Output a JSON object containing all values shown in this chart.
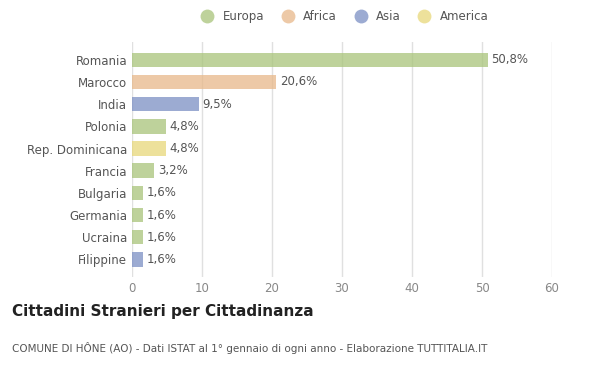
{
  "categories": [
    "Romania",
    "Marocco",
    "India",
    "Polonia",
    "Rep. Dominicana",
    "Francia",
    "Bulgaria",
    "Germania",
    "Ucraina",
    "Filippine"
  ],
  "values": [
    50.8,
    20.6,
    9.5,
    4.8,
    4.8,
    3.2,
    1.6,
    1.6,
    1.6,
    1.6
  ],
  "labels": [
    "50,8%",
    "20,6%",
    "9,5%",
    "4,8%",
    "4,8%",
    "3,2%",
    "1,6%",
    "1,6%",
    "1,6%",
    "1,6%"
  ],
  "colors": [
    "#a8c47a",
    "#e8b88a",
    "#7b8fc4",
    "#a8c47a",
    "#e8d87a",
    "#a8c47a",
    "#a8c47a",
    "#a8c47a",
    "#a8c47a",
    "#7b8fc4"
  ],
  "continent": [
    "Europa",
    "Africa",
    "Asia",
    "Europa",
    "America",
    "Europa",
    "Europa",
    "Europa",
    "Europa",
    "Asia"
  ],
  "legend_labels": [
    "Europa",
    "Africa",
    "Asia",
    "America"
  ],
  "legend_colors": [
    "#a8c47a",
    "#e8b88a",
    "#7b8fc4",
    "#e8d87a"
  ],
  "xlim": [
    0,
    60
  ],
  "xticks": [
    0,
    10,
    20,
    30,
    40,
    50,
    60
  ],
  "title": "Cittadini Stranieri per Cittadinanza",
  "subtitle": "COMUNE DI HÔNE (AO) - Dati ISTAT al 1° gennaio di ogni anno - Elaborazione TUTTITALIA.IT",
  "background_color": "#ffffff",
  "plot_bg_color": "#ffffff",
  "bar_height": 0.65,
  "grid_color": "#e0e0e0",
  "label_fontsize": 8.5,
  "tick_fontsize": 8.5,
  "title_fontsize": 11,
  "subtitle_fontsize": 7.5,
  "bar_alpha": 0.75
}
